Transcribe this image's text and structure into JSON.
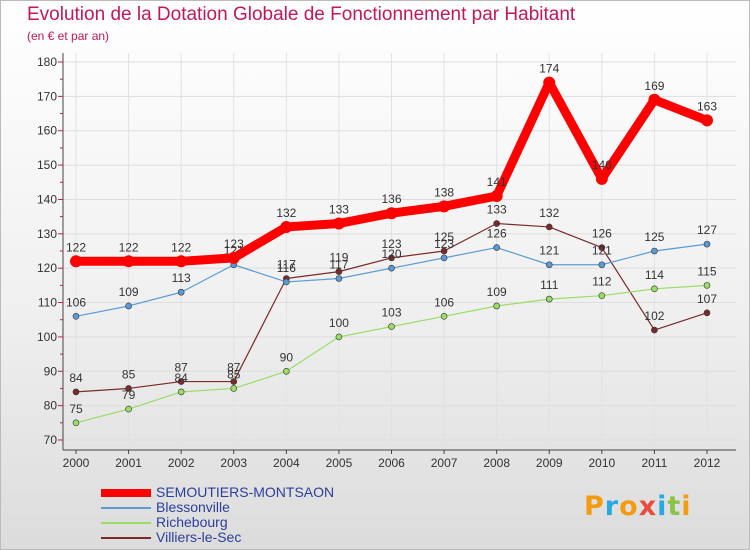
{
  "header": {
    "title": "Evolution de la Dotation Globale de Fonctionnement par Habitant",
    "subtitle": "(en € et par an)"
  },
  "chart_data": {
    "type": "line",
    "title": "Evolution de la Dotation Globale de Fonctionnement par Habitant",
    "subtitle": "(en € et par an)",
    "x": [
      2000,
      2001,
      2002,
      2003,
      2004,
      2005,
      2006,
      2007,
      2008,
      2009,
      2010,
      2011,
      2012
    ],
    "ylim": [
      70,
      180
    ],
    "yticks": [
      70,
      80,
      90,
      100,
      110,
      120,
      130,
      140,
      150,
      160,
      170,
      180
    ],
    "grid": true,
    "legend_position": "bottom-left",
    "series": [
      {
        "name": "SEMOUTIERS-MONTSAON",
        "color": "#ff0000",
        "values": [
          122,
          122,
          122,
          123,
          132,
          133,
          136,
          138,
          141,
          174,
          146,
          169,
          163
        ]
      },
      {
        "name": "Blessonville",
        "color": "#5b9bd5",
        "values": [
          106,
          109,
          113,
          121,
          116,
          117,
          120,
          123,
          126,
          121,
          121,
          125,
          127
        ]
      },
      {
        "name": "Richebourg",
        "color": "#99dd66",
        "values": [
          75,
          79,
          84,
          85,
          90,
          100,
          103,
          106,
          109,
          111,
          112,
          114,
          115
        ]
      },
      {
        "name": "Villiers-le-Sec",
        "color": "#7a2a2a",
        "values": [
          84,
          85,
          87,
          87,
          117,
          119,
          123,
          125,
          133,
          132,
          126,
          102,
          107
        ]
      }
    ]
  },
  "logo": {
    "letters": [
      "P",
      "r",
      "o",
      "x",
      "i",
      "t",
      "i"
    ],
    "colors": [
      "#f39c12",
      "#27a9e1",
      "#f39c12",
      "#e74c3c",
      "#27a9e1",
      "#8bc34a",
      "#f39c12"
    ]
  }
}
